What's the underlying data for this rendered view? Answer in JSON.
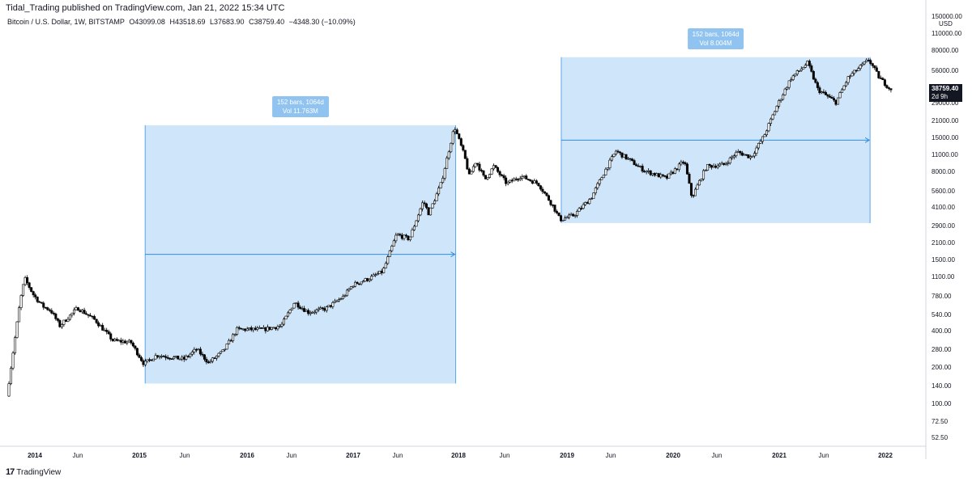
{
  "header": {
    "publisher": "Tidal_Trading published on TradingView.com, Jan 21, 2022 15:34 UTC",
    "symbol": "Bitcoin / U.S. Dollar, 1W, BITSTAMP",
    "open": "O43099.08",
    "high": "H43518.69",
    "low": "L37683.90",
    "close": "C38759.40",
    "change": "−4348.30 (−10.09%)"
  },
  "footer": {
    "logo": "17",
    "brand": "TradingView"
  },
  "price_tag": {
    "price": "38759.40",
    "countdown": "2d 9h"
  },
  "chart_data": {
    "type": "candlestick",
    "title": "Bitcoin / U.S. Dollar, 1W, BITSTAMP",
    "y_scale": "log",
    "y_unit": "USD",
    "y_ticks": [
      "150000.00",
      "110000.00",
      "80000.00",
      "56000.00",
      "29000.00",
      "21000.00",
      "15000.00",
      "11000.00",
      "8000.00",
      "5600.00",
      "4100.00",
      "2900.00",
      "2100.00",
      "1500.00",
      "1100.00",
      "780.00",
      "540.00",
      "400.00",
      "280.00",
      "200.00",
      "140.00",
      "100.00",
      "72.50",
      "52.50"
    ],
    "x_ticks": [
      "2014",
      "Jun",
      "2015",
      "Jun",
      "2016",
      "Jun",
      "2017",
      "Jun",
      "2018",
      "Jun",
      "2019",
      "Jun",
      "2020",
      "Jun",
      "2021",
      "Jun",
      "2022"
    ],
    "price_path": [
      [
        "2013-10-01",
        120
      ],
      [
        "2013-11-15",
        700
      ],
      [
        "2013-12-01",
        1100
      ],
      [
        "2014-01-01",
        800
      ],
      [
        "2014-02-01",
        650
      ],
      [
        "2014-03-01",
        600
      ],
      [
        "2014-04-01",
        450
      ],
      [
        "2014-06-01",
        630
      ],
      [
        "2014-08-01",
        500
      ],
      [
        "2014-10-01",
        340
      ],
      [
        "2014-12-01",
        330
      ],
      [
        "2015-01-15",
        220
      ],
      [
        "2015-03-01",
        260
      ],
      [
        "2015-06-01",
        240
      ],
      [
        "2015-07-15",
        290
      ],
      [
        "2015-08-25",
        225
      ],
      [
        "2015-10-15",
        280
      ],
      [
        "2015-12-01",
        420
      ],
      [
        "2016-03-01",
        420
      ],
      [
        "2016-05-01",
        450
      ],
      [
        "2016-06-15",
        700
      ],
      [
        "2016-08-01",
        580
      ],
      [
        "2016-10-01",
        620
      ],
      [
        "2016-12-01",
        780
      ],
      [
        "2017-01-01",
        970
      ],
      [
        "2017-03-01",
        1100
      ],
      [
        "2017-04-15",
        1250
      ],
      [
        "2017-06-01",
        2500
      ],
      [
        "2017-07-15",
        2300
      ],
      [
        "2017-09-01",
        4700
      ],
      [
        "2017-09-20",
        3700
      ],
      [
        "2017-11-01",
        6500
      ],
      [
        "2017-12-17",
        19000
      ],
      [
        "2018-01-20",
        11000
      ],
      [
        "2018-02-06",
        7500
      ],
      [
        "2018-03-01",
        10000
      ],
      [
        "2018-04-01",
        7000
      ],
      [
        "2018-05-01",
        9000
      ],
      [
        "2018-06-15",
        6500
      ],
      [
        "2018-08-01",
        7500
      ],
      [
        "2018-10-01",
        6500
      ],
      [
        "2018-11-20",
        4300
      ],
      [
        "2018-12-15",
        3300
      ],
      [
        "2019-02-01",
        3600
      ],
      [
        "2019-04-01",
        5000
      ],
      [
        "2019-05-15",
        8000
      ],
      [
        "2019-06-25",
        12000
      ],
      [
        "2019-08-01",
        10500
      ],
      [
        "2019-10-01",
        8300
      ],
      [
        "2019-12-15",
        7200
      ],
      [
        "2020-02-15",
        10000
      ],
      [
        "2020-03-12",
        5000
      ],
      [
        "2020-05-01",
        9000
      ],
      [
        "2020-07-01",
        9300
      ],
      [
        "2020-08-15",
        11800
      ],
      [
        "2020-10-01",
        10700
      ],
      [
        "2020-11-15",
        16000
      ],
      [
        "2021-01-01",
        29000
      ],
      [
        "2021-02-15",
        47000
      ],
      [
        "2021-04-14",
        63000
      ],
      [
        "2021-05-19",
        38000
      ],
      [
        "2021-07-20",
        30000
      ],
      [
        "2021-09-01",
        48000
      ],
      [
        "2021-11-10",
        67000
      ],
      [
        "2021-12-15",
        48000
      ],
      [
        "2022-01-21",
        38759
      ]
    ],
    "measurements": [
      {
        "from": "2015-01-15",
        "to": "2017-12-17",
        "low": 152,
        "high": 19500,
        "bars": "152 bars, 1064d",
        "vol": "Vol 11.763M"
      },
      {
        "from": "2018-12-15",
        "to": "2021-11-10",
        "low": 3100,
        "high": 70000,
        "bars": "152 bars, 1064d",
        "vol": "Vol 8.004M"
      }
    ]
  }
}
